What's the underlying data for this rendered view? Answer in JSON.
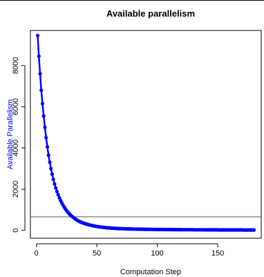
{
  "chart_data": {
    "type": "line",
    "title": "Available parallelism",
    "xlabel": "Computation Step",
    "ylabel": "Available Parallelism",
    "xlim": [
      -5,
      186
    ],
    "ylim": [
      -380,
      9700
    ],
    "x_ticks": [
      0,
      50,
      100,
      150
    ],
    "x_tick_labels": [
      "0",
      "50",
      "100",
      "150"
    ],
    "y_ticks": [
      0,
      2000,
      4000,
      6000,
      8000
    ],
    "y_tick_labels": [
      "0",
      "2000",
      "4000",
      "6000",
      "8000"
    ],
    "grid": false,
    "legend": "none",
    "series": [
      {
        "color": "#0000ff",
        "x_start": 1,
        "x_end": 180,
        "x_step": 1,
        "y_formula_samples": [
          [
            1,
            9450
          ],
          [
            2,
            8450
          ],
          [
            3,
            7600
          ],
          [
            4,
            6800
          ],
          [
            5,
            6150
          ],
          [
            6,
            5550
          ],
          [
            7,
            5000
          ],
          [
            8,
            4500
          ],
          [
            10,
            3650
          ],
          [
            12,
            3000
          ],
          [
            15,
            2250
          ],
          [
            20,
            1450
          ],
          [
            25,
            950
          ],
          [
            30,
            650
          ],
          [
            35,
            450
          ],
          [
            40,
            330
          ],
          [
            50,
            190
          ],
          [
            60,
            120
          ],
          [
            70,
            85
          ],
          [
            80,
            65
          ],
          [
            100,
            45
          ],
          [
            120,
            35
          ],
          [
            150,
            25
          ],
          [
            180,
            20
          ]
        ]
      }
    ],
    "reference_line": {
      "y": 660,
      "color": "#555555"
    }
  }
}
